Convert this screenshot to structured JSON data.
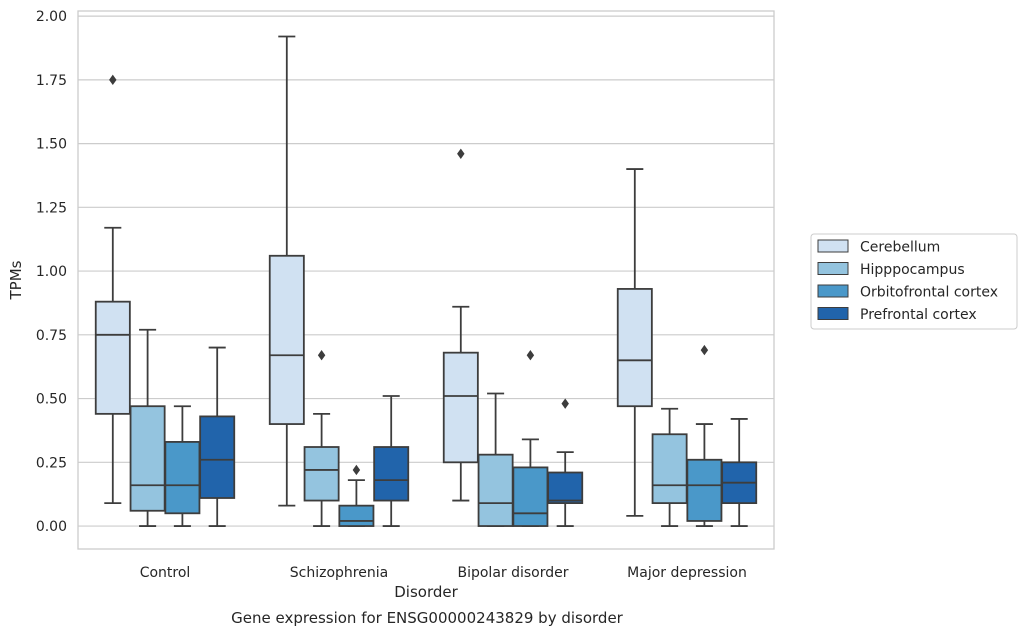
{
  "chart_data": {
    "type": "box",
    "xlabel": "Disorder",
    "ylabel": "TPMs",
    "caption": "Gene expression for ENSG00000243829 by disorder",
    "ylim": [
      -0.09,
      2.02
    ],
    "yticks": [
      "0.00",
      "0.25",
      "0.50",
      "0.75",
      "1.00",
      "1.25",
      "1.50",
      "1.75",
      "2.00"
    ],
    "grid": "horizontal",
    "legend_position": "right",
    "categories": [
      "Control",
      "Schizophrenia",
      "Bipolar disorder",
      "Major depression"
    ],
    "series": [
      {
        "name": "Cerebellum",
        "color": "#d0e1f2",
        "boxes": [
          {
            "whislo": 0.09,
            "q1": 0.44,
            "med": 0.75,
            "q3": 0.88,
            "whishi": 1.17,
            "fliers": [
              1.75
            ]
          },
          {
            "whislo": 0.08,
            "q1": 0.4,
            "med": 0.67,
            "q3": 1.06,
            "whishi": 1.92,
            "fliers": []
          },
          {
            "whislo": 0.1,
            "q1": 0.25,
            "med": 0.51,
            "q3": 0.68,
            "whishi": 0.86,
            "fliers": [
              1.46
            ]
          },
          {
            "whislo": 0.04,
            "q1": 0.47,
            "med": 0.65,
            "q3": 0.93,
            "whishi": 1.4,
            "fliers": []
          }
        ]
      },
      {
        "name": "Hipppocampus",
        "color": "#94c4df",
        "boxes": [
          {
            "whislo": 0.0,
            "q1": 0.06,
            "med": 0.16,
            "q3": 0.47,
            "whishi": 0.77,
            "fliers": []
          },
          {
            "whislo": 0.0,
            "q1": 0.1,
            "med": 0.22,
            "q3": 0.31,
            "whishi": 0.44,
            "fliers": [
              0.67
            ]
          },
          {
            "whislo": 0.0,
            "q1": 0.0,
            "med": 0.09,
            "q3": 0.28,
            "whishi": 0.52,
            "fliers": []
          },
          {
            "whislo": 0.0,
            "q1": 0.09,
            "med": 0.16,
            "q3": 0.36,
            "whishi": 0.46,
            "fliers": []
          }
        ]
      },
      {
        "name": "Orbitofrontal cortex",
        "color": "#4a98c9",
        "boxes": [
          {
            "whislo": 0.0,
            "q1": 0.05,
            "med": 0.16,
            "q3": 0.33,
            "whishi": 0.47,
            "fliers": []
          },
          {
            "whislo": 0.0,
            "q1": 0.0,
            "med": 0.02,
            "q3": 0.08,
            "whishi": 0.18,
            "fliers": [
              0.22
            ]
          },
          {
            "whislo": 0.0,
            "q1": 0.0,
            "med": 0.05,
            "q3": 0.23,
            "whishi": 0.34,
            "fliers": [
              0.67
            ]
          },
          {
            "whislo": 0.0,
            "q1": 0.02,
            "med": 0.16,
            "q3": 0.26,
            "whishi": 0.4,
            "fliers": [
              0.69
            ]
          }
        ]
      },
      {
        "name": "Prefrontal cortex",
        "color": "#2164ab",
        "boxes": [
          {
            "whislo": 0.0,
            "q1": 0.11,
            "med": 0.26,
            "q3": 0.43,
            "whishi": 0.7,
            "fliers": []
          },
          {
            "whislo": 0.0,
            "q1": 0.1,
            "med": 0.18,
            "q3": 0.31,
            "whishi": 0.51,
            "fliers": []
          },
          {
            "whislo": 0.0,
            "q1": 0.09,
            "med": 0.1,
            "q3": 0.21,
            "whishi": 0.29,
            "fliers": [
              0.48
            ]
          },
          {
            "whislo": 0.0,
            "q1": 0.09,
            "med": 0.17,
            "q3": 0.25,
            "whishi": 0.42,
            "fliers": []
          }
        ]
      }
    ]
  }
}
